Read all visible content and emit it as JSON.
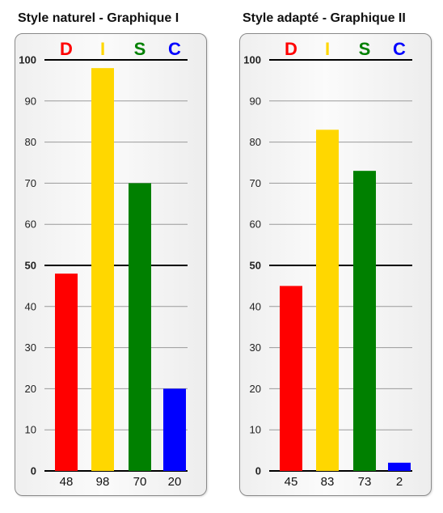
{
  "chart_data": [
    {
      "type": "bar",
      "title": "Style naturel - Graphique I",
      "categories": [
        "D",
        "I",
        "S",
        "C"
      ],
      "category_colors": [
        "#ff0000",
        "#ffd700",
        "#008000",
        "#0000ff"
      ],
      "values": [
        48,
        98,
        70,
        20
      ],
      "value_labels": [
        "48",
        "98",
        "70",
        "20"
      ],
      "ylim": [
        0,
        100
      ],
      "yticks": [
        0,
        10,
        20,
        30,
        40,
        50,
        60,
        70,
        80,
        90,
        100
      ],
      "emphasized_lines": [
        0,
        50,
        100
      ],
      "grid": true
    },
    {
      "type": "bar",
      "title": "Style adapté - Graphique II",
      "categories": [
        "D",
        "I",
        "S",
        "C"
      ],
      "category_colors": [
        "#ff0000",
        "#ffd700",
        "#008000",
        "#0000ff"
      ],
      "values": [
        45,
        83,
        73,
        2
      ],
      "value_labels": [
        "45",
        "83",
        "73",
        "2"
      ],
      "ylim": [
        0,
        100
      ],
      "yticks": [
        0,
        10,
        20,
        30,
        40,
        50,
        60,
        70,
        80,
        90,
        100
      ],
      "emphasized_lines": [
        0,
        50,
        100
      ],
      "grid": true
    }
  ]
}
